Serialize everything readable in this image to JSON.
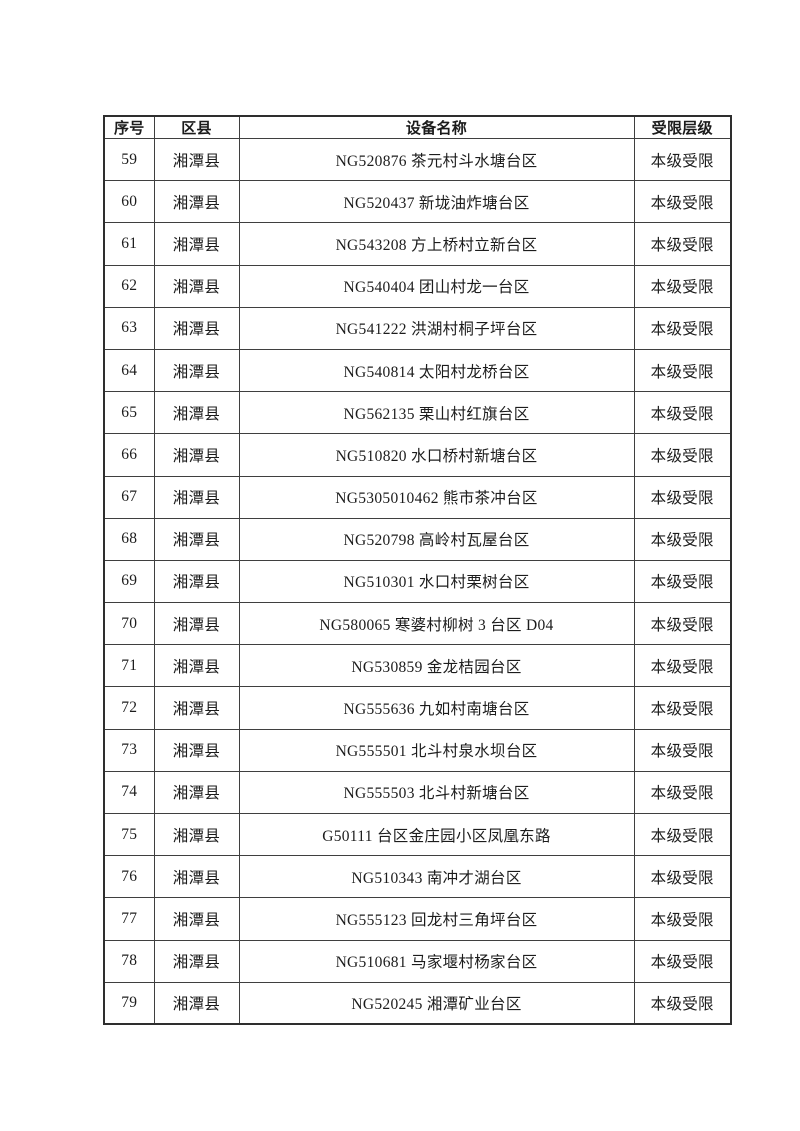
{
  "page": {
    "background": "#ffffff",
    "text_color": "#1c1c1c",
    "border_color": "#3f3f3f"
  },
  "table": {
    "headers": [
      "序号",
      "区县",
      "设备名称",
      "受限层级"
    ],
    "rows": [
      [
        "59",
        "湘潭县",
        "NG520876 茶元村斗水塘台区",
        "本级受限"
      ],
      [
        "60",
        "湘潭县",
        "NG520437 新垅油炸塘台区",
        "本级受限"
      ],
      [
        "61",
        "湘潭县",
        "NG543208 方上桥村立新台区",
        "本级受限"
      ],
      [
        "62",
        "湘潭县",
        "NG540404 团山村龙一台区",
        "本级受限"
      ],
      [
        "63",
        "湘潭县",
        "NG541222 洪湖村桐子坪台区",
        "本级受限"
      ],
      [
        "64",
        "湘潭县",
        "NG540814 太阳村龙桥台区",
        "本级受限"
      ],
      [
        "65",
        "湘潭县",
        "NG562135 栗山村红旗台区",
        "本级受限"
      ],
      [
        "66",
        "湘潭县",
        "NG510820 水口桥村新塘台区",
        "本级受限"
      ],
      [
        "67",
        "湘潭县",
        "NG5305010462 熊市茶冲台区",
        "本级受限"
      ],
      [
        "68",
        "湘潭县",
        "NG520798 高岭村瓦屋台区",
        "本级受限"
      ],
      [
        "69",
        "湘潭县",
        "NG510301 水口村栗树台区",
        "本级受限"
      ],
      [
        "70",
        "湘潭县",
        "NG580065 寒婆村柳树 3 台区 D04",
        "本级受限"
      ],
      [
        "71",
        "湘潭县",
        "NG530859 金龙桔园台区",
        "本级受限"
      ],
      [
        "72",
        "湘潭县",
        "NG555636 九如村南塘台区",
        "本级受限"
      ],
      [
        "73",
        "湘潭县",
        "NG555501 北斗村泉水坝台区",
        "本级受限"
      ],
      [
        "74",
        "湘潭县",
        "NG555503 北斗村新塘台区",
        "本级受限"
      ],
      [
        "75",
        "湘潭县",
        "G50111 台区金庄园小区凤凰东路",
        "本级受限"
      ],
      [
        "76",
        "湘潭县",
        "NG510343 南冲才湖台区",
        "本级受限"
      ],
      [
        "77",
        "湘潭县",
        "NG555123 回龙村三角坪台区",
        "本级受限"
      ],
      [
        "78",
        "湘潭县",
        "NG510681 马家堰村杨家台区",
        "本级受限"
      ],
      [
        "79",
        "湘潭县",
        "NG520245 湘潭矿业台区",
        "本级受限"
      ]
    ]
  }
}
